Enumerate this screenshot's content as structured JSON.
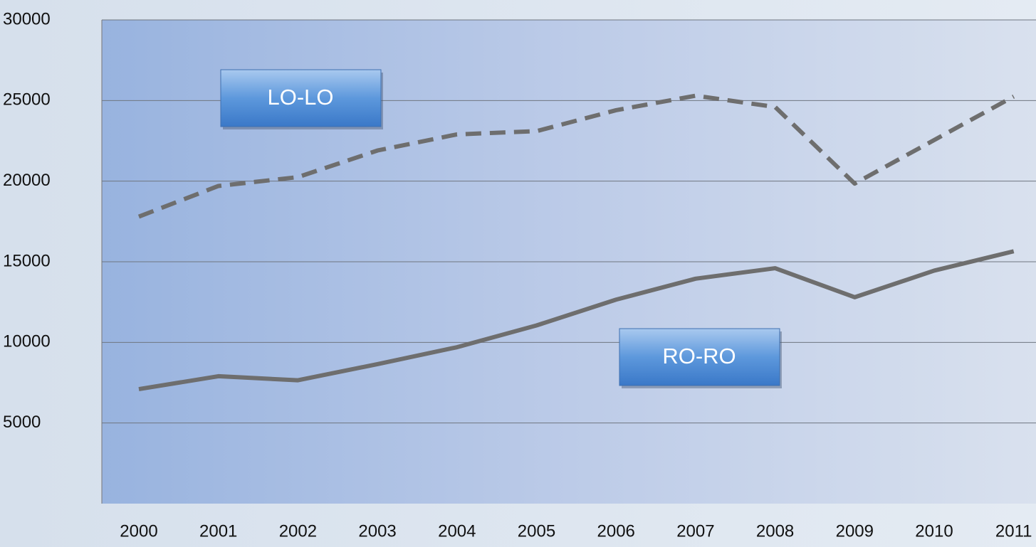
{
  "chart_data": {
    "type": "line",
    "categories": [
      "2000",
      "2001",
      "2002",
      "2003",
      "2004",
      "2005",
      "2006",
      "2007",
      "2008",
      "2009",
      "2010",
      "2011"
    ],
    "series": [
      {
        "name": "LO-LO",
        "color": "#6e6e6e",
        "dash": true,
        "values": [
          17800,
          19700,
          20250,
          21900,
          22900,
          23100,
          24400,
          25300,
          24600,
          19850,
          22550,
          25250
        ]
      },
      {
        "name": "RO-RO",
        "color": "#6e6e6e",
        "dash": false,
        "values": [
          7100,
          7900,
          7650,
          8650,
          9700,
          11050,
          12650,
          13950,
          14600,
          12800,
          14450,
          15650
        ]
      }
    ],
    "ylim": [
      0,
      30000
    ],
    "yticks": [
      5000,
      10000,
      15000,
      20000,
      25000,
      30000
    ],
    "grid": true
  }
}
